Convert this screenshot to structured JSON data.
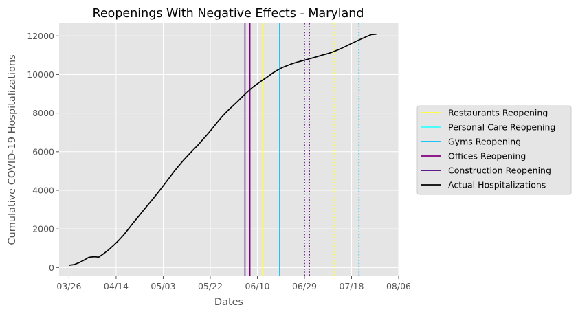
{
  "chart_data": {
    "type": "line",
    "title": "Reopenings With Negative Effects - Maryland",
    "xlabel": "Dates",
    "ylabel": "Cumulative COVID-19 Hospitalizations",
    "x_ticks": [
      "03/26",
      "04/14",
      "05/03",
      "05/22",
      "06/10",
      "06/29",
      "07/18",
      "08/06"
    ],
    "y_ticks": [
      0,
      2000,
      4000,
      6000,
      8000,
      10000,
      12000
    ],
    "xlim": [
      "03/22",
      "08/06"
    ],
    "ylim": [
      -450,
      12650
    ],
    "grid": true,
    "legend_position": "center-right",
    "series": [
      {
        "name": "Actual Hospitalizations",
        "color": "#000000",
        "x": [
          "03/26",
          "03/28",
          "03/30",
          "04/01",
          "04/03",
          "04/05",
          "04/07",
          "04/09",
          "04/11",
          "04/13",
          "04/15",
          "04/17",
          "04/19",
          "04/21",
          "04/23",
          "04/25",
          "04/27",
          "04/29",
          "05/01",
          "05/03",
          "05/05",
          "05/07",
          "05/09",
          "05/11",
          "05/13",
          "05/15",
          "05/17",
          "05/19",
          "05/21",
          "05/23",
          "05/25",
          "05/27",
          "05/29",
          "05/31",
          "06/02",
          "06/04",
          "06/06",
          "06/08",
          "06/10",
          "06/12",
          "06/14",
          "06/16",
          "06/18",
          "06/20",
          "06/22",
          "06/24",
          "06/26",
          "06/28",
          "06/30",
          "07/02",
          "07/04",
          "07/06",
          "07/08",
          "07/10",
          "07/12",
          "07/14",
          "07/16",
          "07/18",
          "07/20",
          "07/22",
          "07/24",
          "07/26",
          "07/28"
        ],
        "values": [
          120,
          150,
          250,
          380,
          530,
          560,
          540,
          720,
          920,
          1150,
          1400,
          1680,
          2000,
          2330,
          2640,
          2960,
          3270,
          3580,
          3900,
          4230,
          4570,
          4910,
          5230,
          5530,
          5810,
          6080,
          6340,
          6630,
          6920,
          7230,
          7550,
          7850,
          8120,
          8360,
          8600,
          8860,
          9100,
          9330,
          9520,
          9700,
          9870,
          10060,
          10220,
          10360,
          10460,
          10560,
          10640,
          10710,
          10780,
          10850,
          10920,
          11000,
          11070,
          11150,
          11250,
          11360,
          11480,
          11610,
          11730,
          11850,
          11960,
          12070,
          12090
        ]
      }
    ],
    "events": [
      {
        "name": "Restaurants Reopening",
        "color": "#ffff33",
        "dates": [
          "06/12",
          "07/11"
        ],
        "styles": [
          "solid",
          "dotted"
        ]
      },
      {
        "name": "Personal Care Reopening",
        "color": "#33ffff",
        "dates": [
          "06/07",
          "07/01"
        ],
        "styles": [
          "solid",
          "dotted"
        ]
      },
      {
        "name": "Gyms Reopening",
        "color": "#00bfff",
        "dates": [
          "06/19",
          "07/21"
        ],
        "styles": [
          "solid",
          "dotted"
        ]
      },
      {
        "name": "Offices Reopening",
        "color": "#800080",
        "dates": [
          "06/07",
          "07/01"
        ],
        "styles": [
          "solid",
          "dotted"
        ]
      },
      {
        "name": "Construction Reopening",
        "color": "#4b0082",
        "dates": [
          "06/05",
          "06/29"
        ],
        "styles": [
          "solid",
          "dotted"
        ]
      }
    ]
  }
}
